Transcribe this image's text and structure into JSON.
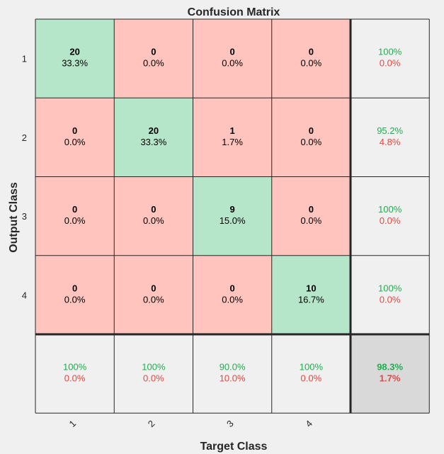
{
  "chart_data": {
    "type": "heatmap",
    "title": "Confusion Matrix",
    "xlabel": "Target Class",
    "ylabel": "Output Class",
    "classes": [
      "1",
      "2",
      "3",
      "4"
    ],
    "matrix": [
      [
        20,
        0,
        0,
        0
      ],
      [
        0,
        20,
        1,
        0
      ],
      [
        0,
        0,
        9,
        0
      ],
      [
        0,
        0,
        0,
        10
      ]
    ],
    "cell_percent": [
      [
        "33.3%",
        "0.0%",
        "0.0%",
        "0.0%"
      ],
      [
        "0.0%",
        "33.3%",
        "1.7%",
        "0.0%"
      ],
      [
        "0.0%",
        "0.0%",
        "15.0%",
        "0.0%"
      ],
      [
        "0.0%",
        "0.0%",
        "0.0%",
        "16.7%"
      ]
    ],
    "row_summary": [
      [
        "100%",
        "0.0%"
      ],
      [
        "95.2%",
        "4.8%"
      ],
      [
        "100%",
        "0.0%"
      ],
      [
        "100%",
        "0.0%"
      ]
    ],
    "col_summary": [
      [
        "100%",
        "0.0%"
      ],
      [
        "100%",
        "0.0%"
      ],
      [
        "90.0%",
        "10.0%"
      ],
      [
        "100%",
        "0.0%"
      ]
    ],
    "overall": [
      "98.3%",
      "1.7%"
    ]
  },
  "colors": {
    "correct": "#b5e6c9",
    "incorrect": "#ffc4bd",
    "summary": "#f0f0f0",
    "overall": "#d9d9d9",
    "good_text": "#1cb04d",
    "bad_text": "#e8463d"
  }
}
